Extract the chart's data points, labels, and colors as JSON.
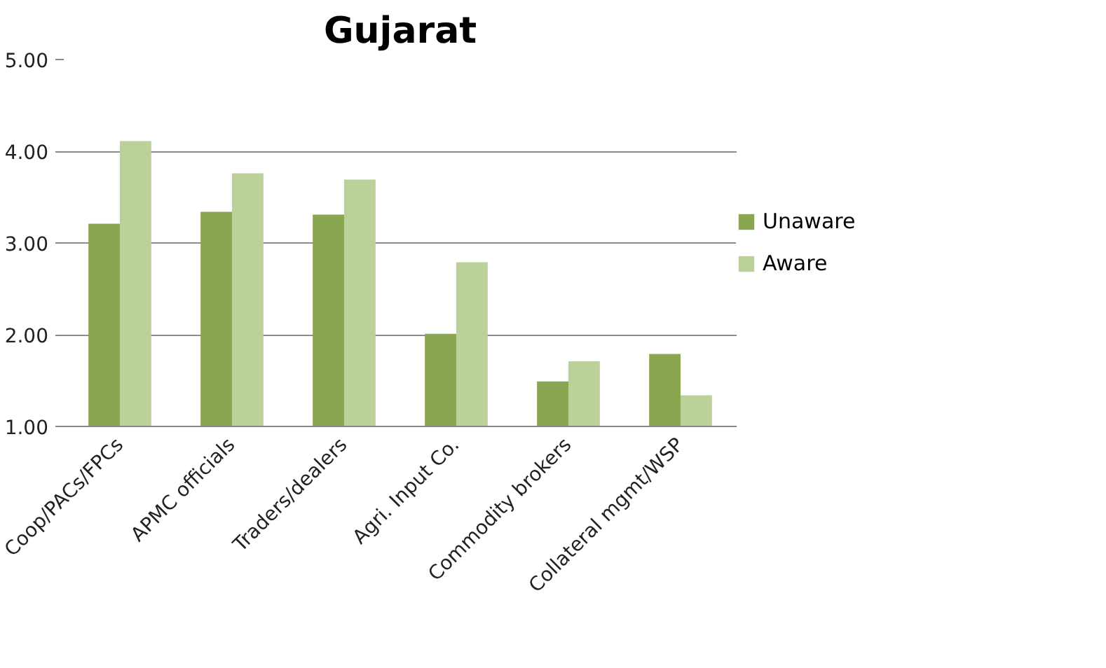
{
  "chart_data": {
    "type": "bar",
    "title": "Gujarat",
    "categories": [
      "Coop/PACs/FPCs",
      "APMC officials",
      "Traders/dealers",
      "Agri. Input Co.",
      "Commodity brokers",
      "Collateral mgmt/WSP"
    ],
    "series": [
      {
        "name": "Unaware",
        "color": "#8aa650",
        "values": [
          3.21,
          3.34,
          3.31,
          2.01,
          1.49,
          1.79
        ]
      },
      {
        "name": "Aware",
        "color": "#bcd09a",
        "values": [
          4.11,
          3.76,
          3.69,
          2.79,
          1.71,
          1.34
        ]
      }
    ],
    "ylim": [
      1,
      5
    ],
    "yticks": [
      {
        "value": 1,
        "label": "1.00"
      },
      {
        "value": 2,
        "label": "2.00"
      },
      {
        "value": 3,
        "label": "3.00"
      },
      {
        "value": 4,
        "label": "4.00"
      },
      {
        "value": 5,
        "label": "5.00"
      }
    ],
    "grid": "y",
    "legend": "right"
  }
}
